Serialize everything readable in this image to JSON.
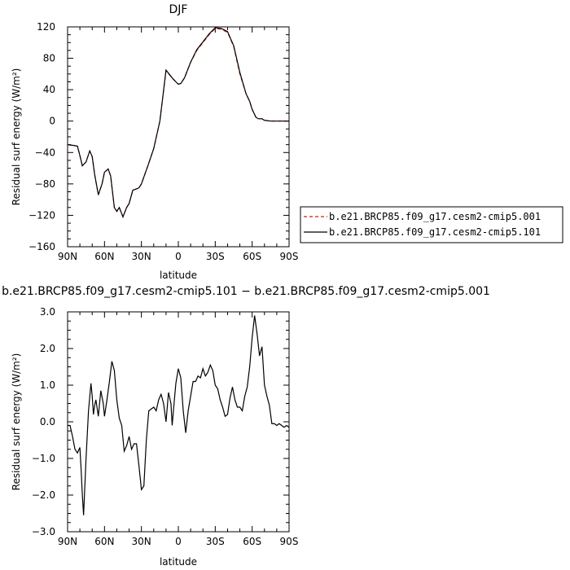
{
  "colors": {
    "run1": "#cc2200",
    "run2": "#000000",
    "frame": "#000000"
  },
  "legend": {
    "items": [
      {
        "label": "b.e21.BRCP85.f09_g17.cesm2-cmip5.001",
        "color": "#cc2200",
        "style": "dashed"
      },
      {
        "label": "b.e21.BRCP85.f09_g17.cesm2-cmip5.101",
        "color": "#000000",
        "style": "solid"
      }
    ]
  },
  "chart_data": [
    {
      "type": "line",
      "title": "DJF",
      "xlabel": "latitude",
      "ylabel": "Residual surf energy (W/m²)",
      "xlim": [
        90,
        -90
      ],
      "ylim": [
        -160,
        120
      ],
      "xticks": [
        90,
        60,
        30,
        0,
        -30,
        -60,
        -90
      ],
      "xtick_labels": [
        "90N",
        "60N",
        "30N",
        "0",
        "30S",
        "60S",
        "90S"
      ],
      "yticks": [
        -160,
        -120,
        -80,
        -40,
        0,
        40,
        80,
        120
      ],
      "ytick_labels": [
        "−160",
        "−120",
        "−80",
        "−40",
        "0",
        "40",
        "80",
        "120"
      ],
      "grid": false,
      "legend_position": "right",
      "x": [
        90,
        85,
        82,
        80,
        78,
        75,
        72,
        70,
        68,
        65,
        62,
        60,
        57,
        55,
        52,
        50,
        48,
        45,
        42,
        40,
        37,
        35,
        32,
        30,
        25,
        20,
        15,
        10,
        5,
        2,
        0,
        -2,
        -5,
        -10,
        -15,
        -20,
        -25,
        -30,
        -35,
        -40,
        -45,
        -50,
        -55,
        -58,
        -60,
        -63,
        -65,
        -68,
        -70,
        -75,
        -80,
        -85,
        -90
      ],
      "series": [
        {
          "name": "b.e21.BRCP85.f09_g17.cesm2-cmip5.001",
          "values": [
            -30,
            -31,
            -32,
            -44,
            -57,
            -52,
            -38,
            -45,
            -68,
            -94,
            -80,
            -65,
            -61,
            -70,
            -110,
            -115,
            -110,
            -122,
            -110,
            -105,
            -88,
            -87,
            -85,
            -80,
            -58,
            -35,
            0,
            64,
            55,
            50,
            47,
            48,
            55,
            75,
            90,
            100,
            110,
            118,
            117,
            113,
            95,
            60,
            35,
            25,
            15,
            5,
            3,
            3,
            1,
            0,
            0,
            0,
            0
          ]
        },
        {
          "name": "b.e21.BRCP85.f09_g17.cesm2-cmip5.101",
          "values": [
            -30,
            -31,
            -32,
            -44,
            -57,
            -52,
            -38,
            -45,
            -68,
            -94,
            -80,
            -65,
            -61,
            -70,
            -110,
            -115,
            -110,
            -122,
            -110,
            -105,
            -88,
            -87,
            -85,
            -80,
            -58,
            -35,
            0,
            65,
            55,
            50,
            47,
            48,
            55,
            75,
            91,
            101,
            111,
            119,
            118,
            114,
            96,
            62,
            35,
            25,
            15,
            5,
            3,
            3,
            1,
            0,
            0,
            0,
            0
          ]
        }
      ]
    },
    {
      "type": "line",
      "title": "b.e21.BRCP85.f09_g17.cesm2-cmip5.101 − b.e21.BRCP85.f09_g17.cesm2-cmip5.001",
      "xlabel": "latitude",
      "ylabel": "Residual surf energy (W/m²)",
      "xlim": [
        90,
        -90
      ],
      "ylim": [
        -3,
        3
      ],
      "xticks": [
        90,
        60,
        30,
        0,
        -30,
        -60,
        -90
      ],
      "xtick_labels": [
        "90N",
        "60N",
        "30N",
        "0",
        "30S",
        "60S",
        "90S"
      ],
      "yticks": [
        -3,
        -2,
        -1,
        0,
        1,
        2,
        3
      ],
      "ytick_labels": [
        "−3.0",
        "−2.0",
        "−1.0",
        "0.0",
        "1.0",
        "2.0",
        "3.0"
      ],
      "grid": false,
      "x": [
        90,
        88,
        86,
        84,
        82,
        80,
        79,
        78,
        77,
        75,
        73,
        71,
        70,
        69,
        68,
        67,
        65,
        63,
        61,
        60,
        58,
        56,
        54,
        52,
        50,
        48,
        46,
        44,
        42,
        40,
        38,
        36,
        34,
        32,
        30,
        28,
        26,
        24,
        22,
        20,
        18,
        16,
        14,
        12,
        10,
        8,
        6,
        5,
        4,
        2,
        0,
        -2,
        -4,
        -6,
        -8,
        -10,
        -12,
        -14,
        -16,
        -18,
        -20,
        -22,
        -24,
        -26,
        -28,
        -30,
        -32,
        -34,
        -36,
        -38,
        -40,
        -42,
        -44,
        -46,
        -48,
        -50,
        -52,
        -54,
        -56,
        -58,
        -60,
        -62,
        -64,
        -66,
        -68,
        -70,
        -72,
        -74,
        -76,
        -78,
        -80,
        -82,
        -84,
        -86,
        -88,
        -90
      ],
      "series": [
        {
          "name": "b.e21.BRCP85.f09_g17.cesm2-cmip5.101 − b.e21.BRCP85.f09_g17.cesm2-cmip5.001",
          "values": [
            -0.1,
            -0.1,
            -0.4,
            -0.75,
            -0.85,
            -0.7,
            -1.3,
            -2.0,
            -2.55,
            -1.0,
            0.3,
            1.05,
            0.7,
            0.2,
            0.45,
            0.6,
            0.15,
            0.85,
            0.5,
            0.15,
            0.6,
            1.1,
            1.65,
            1.4,
            0.6,
            0.1,
            -0.1,
            -0.8,
            -0.65,
            -0.4,
            -0.75,
            -0.6,
            -0.6,
            -1.2,
            -1.85,
            -1.75,
            -0.5,
            0.3,
            0.35,
            0.4,
            0.3,
            0.6,
            0.75,
            0.5,
            0.0,
            0.8,
            0.5,
            -0.1,
            0.3,
            1.05,
            1.45,
            1.2,
            0.3,
            -0.3,
            0.3,
            0.7,
            1.1,
            1.1,
            1.25,
            1.2,
            1.45,
            1.25,
            1.35,
            1.55,
            1.4,
            1.0,
            0.9,
            0.6,
            0.4,
            0.15,
            0.2,
            0.65,
            0.95,
            0.6,
            0.4,
            0.4,
            0.3,
            0.7,
            0.95,
            1.5,
            2.3,
            2.9,
            2.4,
            1.8,
            2.05,
            1.0,
            0.7,
            0.45,
            -0.05,
            -0.05,
            -0.1,
            -0.05,
            -0.1,
            -0.15,
            -0.1,
            -0.15
          ]
        }
      ]
    }
  ]
}
